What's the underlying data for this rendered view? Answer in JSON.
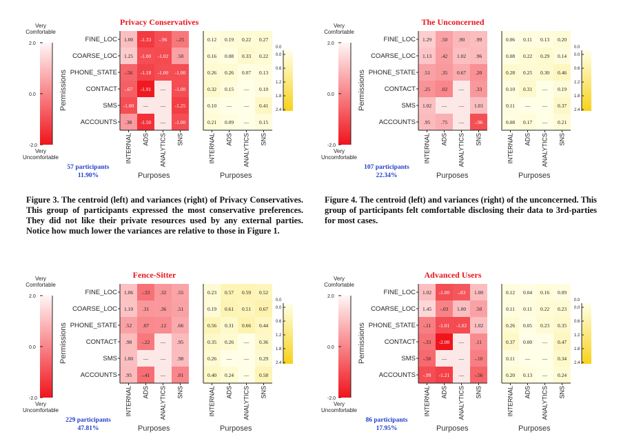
{
  "color_scale": {
    "left_max": "2.0",
    "left_mid": "0.0",
    "left_min": "-2.0",
    "top_label": "Very Comfortable",
    "bottom_label": "Very Uncomfortable",
    "axis_label": "Permissions"
  },
  "var_scale_ticks": [
    "0.0",
    "0.6",
    "1.2",
    "1.8",
    "2.4"
  ],
  "var_scale_extra_tick": "0.0",
  "rows": [
    "FINE_LOC",
    "COARSE_LOC",
    "PHONE_STATE",
    "CONTACT",
    "SMS",
    "ACCOUNTS"
  ],
  "cols": [
    "INTERNAL",
    "ADS",
    "ANALYTICS",
    "SNS"
  ],
  "xlabel": "Purposes",
  "colors": {
    "title": "#e8141c",
    "count": "#2440c8",
    "min_red": "#f0141c",
    "pale": "#fff4f4",
    "var_yellow": "#f8d21a"
  },
  "chart_data": [
    {
      "type": "heatmap",
      "title": "Privacy Conservatives",
      "participants": "57 participants",
      "percent": "11.90%",
      "centroid": [
        [
          "1.00",
          "-1.33",
          "-.96",
          "-.25"
        ],
        [
          "1.25",
          "-1.00",
          "-1.02",
          ".50"
        ],
        [
          "-.56",
          "-1.18",
          "-1.00",
          "-1.00"
        ],
        [
          "-.67",
          "-1.91",
          "—",
          "-1.00"
        ],
        [
          "-1.00",
          "—",
          "—",
          "-1.25"
        ],
        [
          ".38",
          "-1.50",
          "—",
          "-1.00"
        ]
      ],
      "variance": [
        [
          "0.12",
          "0.19",
          "0.22",
          "0.27"
        ],
        [
          "0.16",
          "0.08",
          "0.33",
          "0.22"
        ],
        [
          "0.26",
          "0.26",
          "0.07",
          "0.13"
        ],
        [
          "0.32",
          "0.15",
          "—",
          "0.10"
        ],
        [
          "0.10",
          "—",
          "—",
          "0.41"
        ],
        [
          "0.21",
          "0.09",
          "—",
          "0.15"
        ]
      ]
    },
    {
      "type": "heatmap",
      "title": "The Unconcerned",
      "participants": "107 participants",
      "percent": "22.34%",
      "centroid": [
        [
          "1.29",
          ".50",
          ".90",
          ".99"
        ],
        [
          "1.13",
          ".42",
          "1.02",
          ".96"
        ],
        [
          ".51",
          ".35",
          "0.67",
          ".20"
        ],
        [
          ".25",
          ".02",
          "—",
          ".33"
        ],
        [
          "1.02",
          "—",
          "—",
          "1.01"
        ],
        [
          ".95",
          ".75",
          "—",
          "-.96"
        ]
      ],
      "variance": [
        [
          "0.06",
          "0.11",
          "0.13",
          "0.20"
        ],
        [
          "0.08",
          "0.22",
          "0.29",
          "0.14"
        ],
        [
          "0.28",
          "0.25",
          "0.30",
          "0.46"
        ],
        [
          "0.10",
          "0.31",
          "—",
          "0.19"
        ],
        [
          "0.11",
          "—",
          "—",
          "0.37"
        ],
        [
          "0.08",
          "0.17",
          "—",
          "0.21"
        ]
      ]
    },
    {
      "type": "heatmap",
      "title": "Fence-Sitter",
      "participants": "229 participants",
      "percent": "47.81%",
      "centroid": [
        [
          "1.06",
          "-.33",
          ".32",
          ".55"
        ],
        [
          "1.10",
          ".31",
          ".36",
          ".51"
        ],
        [
          ".52",
          ".07",
          ".12",
          ".66"
        ],
        [
          ".98",
          "-.22",
          "—",
          ".95"
        ],
        [
          "1.00",
          "—",
          "—",
          ".98"
        ],
        [
          ".95",
          "-.41",
          "—",
          ".01"
        ]
      ],
      "variance": [
        [
          "0.23",
          "0.57",
          "0.59",
          "0.52"
        ],
        [
          "0.19",
          "0.61",
          "0.51",
          "0.67"
        ],
        [
          "0.56",
          "0.31",
          "0.66",
          "0.44"
        ],
        [
          "0.35",
          "0.26",
          "—",
          "0.36"
        ],
        [
          "0.26",
          "—",
          "—",
          "0.29"
        ],
        [
          "0.40",
          "0.24",
          "—",
          "0.58"
        ]
      ]
    },
    {
      "type": "heatmap",
      "title": "Advanced Users",
      "participants": "86 participants",
      "percent": "17.95%",
      "centroid": [
        [
          "1.02",
          "-1.00",
          "-.83",
          "1.00"
        ],
        [
          "1.45",
          "-.03",
          "1.00",
          ".50"
        ],
        [
          "-.11",
          "-1.01",
          "-1.02",
          "1.02"
        ],
        [
          "-.33",
          "-2.00",
          "—",
          ".11"
        ],
        [
          "-.50",
          "—",
          "—",
          "-.10"
        ],
        [
          "-.99",
          "-1.21",
          "—",
          "-.56"
        ]
      ],
      "variance": [
        [
          "0.12",
          "0.04",
          "0.16",
          "0.09"
        ],
        [
          "0.11",
          "0.11",
          "0.22",
          "0.23"
        ],
        [
          "0.26",
          "0.05",
          "0.23",
          "0.35"
        ],
        [
          "0.37",
          "0.00",
          "—",
          "0.47"
        ],
        [
          "0.11",
          "—",
          "—",
          "0.34"
        ],
        [
          "0.20",
          "0.13",
          "—",
          "0.24"
        ]
      ]
    }
  ],
  "captions": {
    "figure3": "Figure 3. The centroid (left) and variances (right) of Privacy Conservatives. This group of participants expressed the most conservative preferences. They did not like their private resources used by any external parties. Notice how much lower the variances are relative to those in Figure 1.",
    "figure4": "Figure 4. The centroid (left) and variances (right) of the unconcerned. This group of participants felt comfortable disclosing their data to 3rd-parties for most cases."
  }
}
